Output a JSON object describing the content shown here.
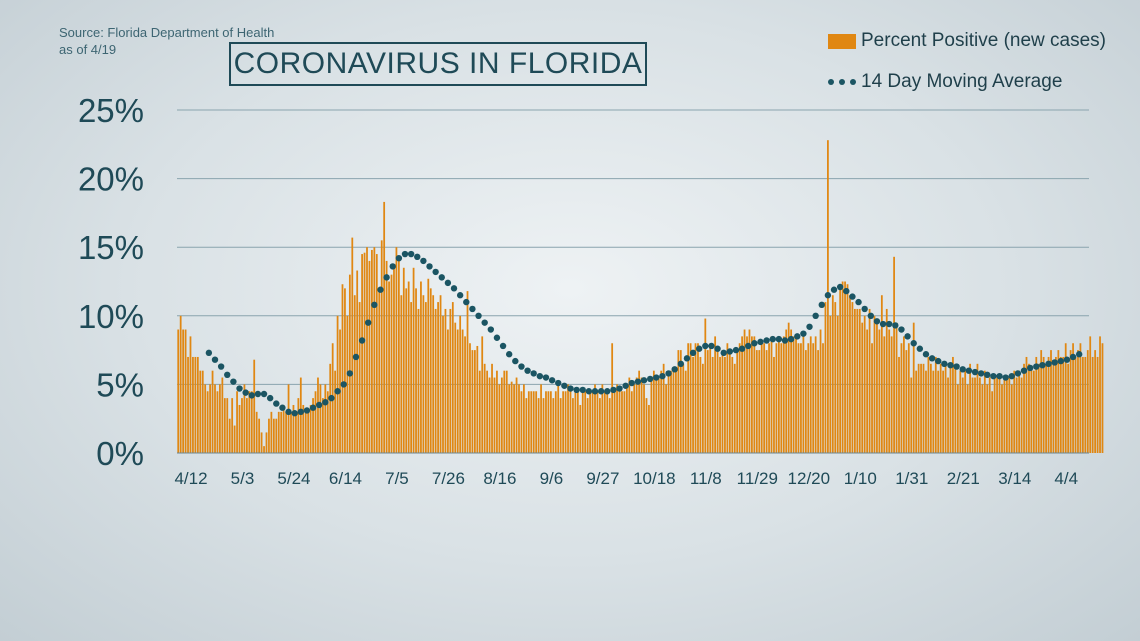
{
  "source_line1": "Source: Florida Department of Health",
  "source_line2": "as of 4/19",
  "title": "CORONAVIRUS IN FLORIDA",
  "legend": {
    "bars": "Percent Positive (new cases)",
    "line": "14 Day Moving Average"
  },
  "colors": {
    "bar": "#e08712",
    "dots": "#1b5563",
    "grid": "#8aa4ae",
    "text": "#1f4a57"
  },
  "chart_data": {
    "type": "bar",
    "ylim": [
      0,
      25
    ],
    "y_ticks": [
      {
        "value": 0,
        "label": "0%"
      },
      {
        "value": 5,
        "label": "5%"
      },
      {
        "value": 10,
        "label": "10%"
      },
      {
        "value": 15,
        "label": "15%"
      },
      {
        "value": 20,
        "label": "20%"
      },
      {
        "value": 25,
        "label": "25%"
      }
    ],
    "x_ticks": [
      {
        "day": 0,
        "label": "4/12"
      },
      {
        "day": 21,
        "label": "5/3"
      },
      {
        "day": 42,
        "label": "5/24"
      },
      {
        "day": 63,
        "label": "6/14"
      },
      {
        "day": 84,
        "label": "7/5"
      },
      {
        "day": 105,
        "label": "7/26"
      },
      {
        "day": 126,
        "label": "8/16"
      },
      {
        "day": 147,
        "label": "9/6"
      },
      {
        "day": 168,
        "label": "9/27"
      },
      {
        "day": 189,
        "label": "10/18"
      },
      {
        "day": 210,
        "label": "11/8"
      },
      {
        "day": 231,
        "label": "11/29"
      },
      {
        "day": 252,
        "label": "12/20"
      },
      {
        "day": 273,
        "label": "1/10"
      },
      {
        "day": 294,
        "label": "1/31"
      },
      {
        "day": 315,
        "label": "2/21"
      },
      {
        "day": 336,
        "label": "3/14"
      },
      {
        "day": 357,
        "label": "4/4"
      }
    ],
    "x_range_days": [
      0,
      372
    ],
    "series": [
      {
        "name": "Percent Positive (new cases)",
        "kind": "bars",
        "values": [
          9.0,
          10.0,
          9.0,
          9.0,
          7.0,
          8.5,
          7.0,
          7.0,
          7.0,
          6.0,
          6.0,
          5.0,
          4.5,
          5.0,
          6.0,
          5.0,
          4.5,
          5.0,
          5.5,
          4.0,
          4.0,
          2.5,
          4.0,
          2.0,
          4.5,
          3.5,
          4.0,
          5.0,
          4.0,
          4.5,
          4.5,
          6.8,
          3.0,
          2.5,
          1.5,
          0.5,
          1.5,
          2.5,
          3.0,
          2.5,
          2.5,
          3.0,
          3.0,
          3.5,
          3.0,
          5.0,
          3.0,
          3.5,
          3.0,
          4.0,
          5.5,
          3.5,
          3.0,
          3.0,
          3.5,
          4.0,
          4.5,
          5.5,
          5.0,
          4.0,
          5.0,
          4.5,
          6.5,
          8.0,
          6.0,
          10.0,
          9.0,
          12.3,
          12.0,
          10.0,
          13.0,
          15.7,
          11.5,
          13.3,
          11.0,
          14.5,
          14.6,
          15.0,
          14.0,
          14.8,
          15.0,
          14.5,
          12.0,
          15.5,
          18.3,
          14.0,
          12.5,
          13.0,
          13.5,
          15.0,
          14.0,
          11.5,
          13.5,
          12.0,
          12.5,
          11.0,
          13.5,
          12.0,
          10.5,
          12.5,
          11.5,
          11.0,
          12.7,
          12.0,
          11.5,
          10.5,
          11.0,
          11.5,
          10.0,
          10.5,
          9.0,
          10.5,
          11.0,
          9.5,
          9.0,
          10.0,
          9.0,
          8.5,
          11.8,
          8.0,
          7.5,
          7.5,
          7.8,
          6.0,
          8.5,
          6.5,
          6.0,
          5.5,
          6.5,
          5.5,
          6.0,
          5.0,
          5.5,
          6.0,
          6.0,
          5.0,
          5.2,
          5.0,
          5.5,
          5.0,
          4.5,
          5.0,
          4.0,
          4.5,
          4.5,
          4.5,
          4.5,
          4.0,
          5.0,
          4.0,
          4.5,
          4.5,
          4.5,
          4.0,
          4.5,
          5.0,
          4.0,
          4.5,
          4.5,
          5.0,
          4.5,
          4.0,
          4.5,
          4.5,
          3.5,
          4.5,
          4.5,
          4.0,
          4.5,
          4.5,
          5.0,
          4.5,
          4.0,
          5.0,
          4.5,
          4.5,
          4.0,
          8.0,
          4.5,
          5.0,
          4.5,
          4.5,
          4.5,
          5.0,
          5.5,
          4.5,
          5.0,
          5.5,
          6.0,
          5.5,
          5.0,
          4.0,
          3.5,
          5.5,
          6.0,
          5.5,
          5.5,
          6.0,
          6.5,
          5.0,
          6.0,
          6.0,
          6.0,
          6.0,
          7.5,
          7.5,
          6.5,
          6.0,
          8.0,
          8.0,
          7.0,
          8.0,
          8.0,
          7.0,
          6.5,
          9.8,
          7.5,
          8.0,
          7.0,
          8.5,
          7.5,
          7.0,
          7.5,
          7.0,
          8.0,
          7.5,
          7.0,
          6.5,
          7.5,
          8.0,
          8.5,
          9.0,
          8.5,
          9.0,
          8.5,
          8.5,
          7.5,
          7.5,
          8.0,
          8.0,
          7.5,
          8.0,
          8.5,
          7.0,
          8.0,
          8.5,
          8.0,
          8.5,
          9.0,
          9.5,
          9.0,
          8.5,
          8.5,
          8.0,
          8.0,
          8.5,
          7.5,
          8.0,
          8.5,
          8.0,
          8.5,
          7.5,
          9.0,
          8.0,
          11.0,
          22.8,
          10.0,
          11.5,
          11.0,
          10.0,
          12.0,
          12.5,
          12.5,
          12.3,
          11.5,
          11.0,
          10.5,
          10.5,
          10.5,
          9.5,
          10.0,
          9.0,
          10.5,
          8.0,
          10.0,
          9.5,
          9.0,
          11.5,
          8.5,
          10.5,
          9.0,
          8.5,
          14.3,
          9.5,
          7.0,
          8.0,
          8.5,
          7.5,
          8.0,
          5.5,
          9.5,
          6.0,
          6.5,
          6.5,
          6.5,
          6.0,
          7.0,
          6.5,
          6.0,
          7.0,
          6.0,
          6.5,
          6.0,
          6.5,
          5.5,
          6.5,
          7.0,
          6.5,
          5.0,
          6.0,
          5.5,
          6.0,
          5.0,
          6.5,
          5.5,
          5.5,
          6.5,
          5.5,
          5.0,
          6.0,
          5.0,
          5.5,
          4.5,
          5.5,
          5.5,
          5.5,
          5.0,
          5.5,
          5.5,
          5.5,
          5.0,
          6.0,
          5.5,
          6.0,
          5.5,
          6.5,
          7.0,
          6.5,
          6.0,
          6.0,
          7.0,
          6.5,
          7.5,
          7.0,
          6.5,
          7.0,
          7.5,
          6.5,
          7.0,
          7.5,
          7.0,
          7.0,
          8.0,
          6.5,
          7.5,
          8.0,
          7.0,
          7.5,
          8.0,
          7.0,
          7.0,
          7.5,
          8.5,
          7.0,
          7.5,
          7.0,
          8.5,
          8.0
        ]
      },
      {
        "name": "14 Day Moving Average",
        "kind": "dots",
        "x_days": [
          13,
          15.5,
          18,
          20.5,
          23,
          25.5,
          28,
          30.5,
          33,
          35.5,
          38,
          40.5,
          43,
          45.5,
          48,
          50.5,
          53,
          55.5,
          58,
          60.5,
          63,
          65.5,
          68,
          70.5,
          73,
          75.5,
          78,
          80.5,
          83,
          85.5,
          88,
          90.5,
          93,
          95.5,
          98,
          100.5,
          103,
          105.5,
          108,
          110.5,
          113,
          115.5,
          118,
          120.5,
          123,
          125.5,
          128,
          130.5,
          133,
          135.5,
          138,
          140.5,
          143,
          145.5,
          148,
          150.5,
          153,
          155.5,
          158,
          160.5,
          163,
          165.5,
          168,
          170.5,
          173,
          175.5,
          178,
          180.5,
          183,
          185.5,
          188,
          190.5,
          193,
          195.5,
          198,
          200.5,
          203,
          205.5,
          208,
          210.5,
          213,
          215.5,
          218,
          220.5,
          223,
          225.5,
          228,
          230.5,
          233,
          235.5,
          238,
          240.5,
          243,
          245.5,
          248,
          250.5,
          253,
          255.5,
          258,
          260.5,
          263,
          265.5,
          268,
          270.5,
          273,
          275.5,
          278,
          280.5,
          283,
          285.5,
          288,
          290.5,
          293,
          295.5,
          298,
          300.5,
          303,
          305.5,
          308,
          310.5,
          313,
          315.5,
          318,
          320.5,
          323,
          325.5,
          328,
          330.5,
          333,
          335.5,
          338,
          340.5,
          343,
          345.5,
          348,
          350.5,
          353,
          355.5,
          358,
          360.5,
          363,
          365.5,
          368
        ],
        "values": [
          7.3,
          6.8,
          6.3,
          5.7,
          5.2,
          4.7,
          4.4,
          4.2,
          4.3,
          4.3,
          4.0,
          3.6,
          3.3,
          3.0,
          2.9,
          3.0,
          3.1,
          3.3,
          3.5,
          3.7,
          4.0,
          4.5,
          5.0,
          5.8,
          7.0,
          8.2,
          9.5,
          10.8,
          11.9,
          12.8,
          13.6,
          14.2,
          14.5,
          14.5,
          14.3,
          14.0,
          13.6,
          13.2,
          12.8,
          12.4,
          12.0,
          11.5,
          11.0,
          10.5,
          10.0,
          9.5,
          9.0,
          8.4,
          7.8,
          7.2,
          6.7,
          6.3,
          6.0,
          5.8,
          5.6,
          5.5,
          5.3,
          5.1,
          4.9,
          4.7,
          4.6,
          4.6,
          4.5,
          4.5,
          4.5,
          4.5,
          4.6,
          4.7,
          4.9,
          5.1,
          5.2,
          5.3,
          5.4,
          5.5,
          5.6,
          5.8,
          6.1,
          6.5,
          6.9,
          7.3,
          7.6,
          7.8,
          7.8,
          7.6,
          7.3,
          7.4,
          7.5,
          7.6,
          7.8,
          8.0,
          8.1,
          8.2,
          8.3,
          8.3,
          8.2,
          8.3,
          8.5,
          8.7,
          9.2,
          10.0,
          10.8,
          11.5,
          11.9,
          12.1,
          11.8,
          11.4,
          11.0,
          10.5,
          10.0,
          9.6,
          9.4,
          9.4,
          9.3,
          9.0,
          8.5,
          8.0,
          7.6,
          7.2,
          6.9,
          6.7,
          6.5,
          6.4,
          6.3,
          6.1,
          6.0,
          5.9,
          5.8,
          5.7,
          5.6,
          5.6,
          5.5,
          5.6,
          5.8,
          6.0,
          6.2,
          6.3,
          6.4,
          6.5,
          6.6,
          6.7,
          6.8,
          7.0,
          7.2
        ]
      }
    ]
  }
}
